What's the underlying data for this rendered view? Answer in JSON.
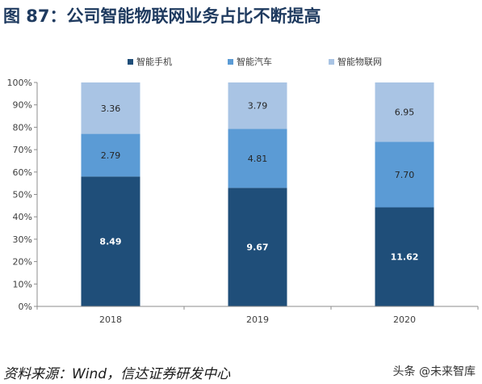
{
  "title": "图 87：公司智能物联网业务占比不断提高",
  "source": "资料来源：Wind，信达证券研发中心",
  "watermark": "头条 @未来智库",
  "chart_data": {
    "type": "bar",
    "stacked": true,
    "categories": [
      "2018",
      "2019",
      "2020"
    ],
    "series": [
      {
        "name": "智能手机",
        "color": "#1f4e79",
        "values": [
          8.49,
          9.67,
          11.62
        ]
      },
      {
        "name": "智能汽车",
        "color": "#5b9bd5",
        "values": [
          2.79,
          4.81,
          7.7
        ]
      },
      {
        "name": "智能物联网",
        "color": "#a9c4e4",
        "values": [
          3.36,
          3.79,
          6.95
        ]
      }
    ],
    "yticks": [
      "0%",
      "10%",
      "20%",
      "30%",
      "40%",
      "50%",
      "60%",
      "70%",
      "80%",
      "90%",
      "100%"
    ],
    "ylim": [
      0,
      100
    ],
    "legend_position": "top",
    "grid": false
  }
}
